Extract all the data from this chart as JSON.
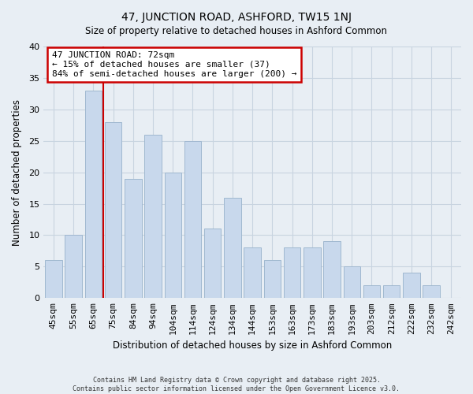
{
  "title": "47, JUNCTION ROAD, ASHFORD, TW15 1NJ",
  "subtitle": "Size of property relative to detached houses in Ashford Common",
  "xlabel": "Distribution of detached houses by size in Ashford Common",
  "ylabel": "Number of detached properties",
  "footer1": "Contains HM Land Registry data © Crown copyright and database right 2025.",
  "footer2": "Contains public sector information licensed under the Open Government Licence v3.0.",
  "bar_labels": [
    "45sqm",
    "55sqm",
    "65sqm",
    "75sqm",
    "84sqm",
    "94sqm",
    "104sqm",
    "114sqm",
    "124sqm",
    "134sqm",
    "144sqm",
    "153sqm",
    "163sqm",
    "173sqm",
    "183sqm",
    "193sqm",
    "203sqm",
    "212sqm",
    "222sqm",
    "232sqm",
    "242sqm"
  ],
  "bar_values": [
    6,
    10,
    33,
    28,
    19,
    26,
    20,
    25,
    11,
    16,
    8,
    6,
    8,
    8,
    9,
    5,
    2,
    2,
    4,
    2,
    0
  ],
  "bar_color": "#c8d8ec",
  "bar_edge_color": "#a0b8d0",
  "grid_color": "#c8d4e0",
  "background_color": "#e8eef4",
  "vline_color": "#cc0000",
  "vline_x": 2.5,
  "annotation_line1": "47 JUNCTION ROAD: 72sqm",
  "annotation_line2": "← 15% of detached houses are smaller (37)",
  "annotation_line3": "84% of semi-detached houses are larger (200) →",
  "annotation_box_color": "#ffffff",
  "annotation_box_edge": "#cc0000",
  "ylim": [
    0,
    40
  ],
  "yticks": [
    0,
    5,
    10,
    15,
    20,
    25,
    30,
    35,
    40
  ]
}
